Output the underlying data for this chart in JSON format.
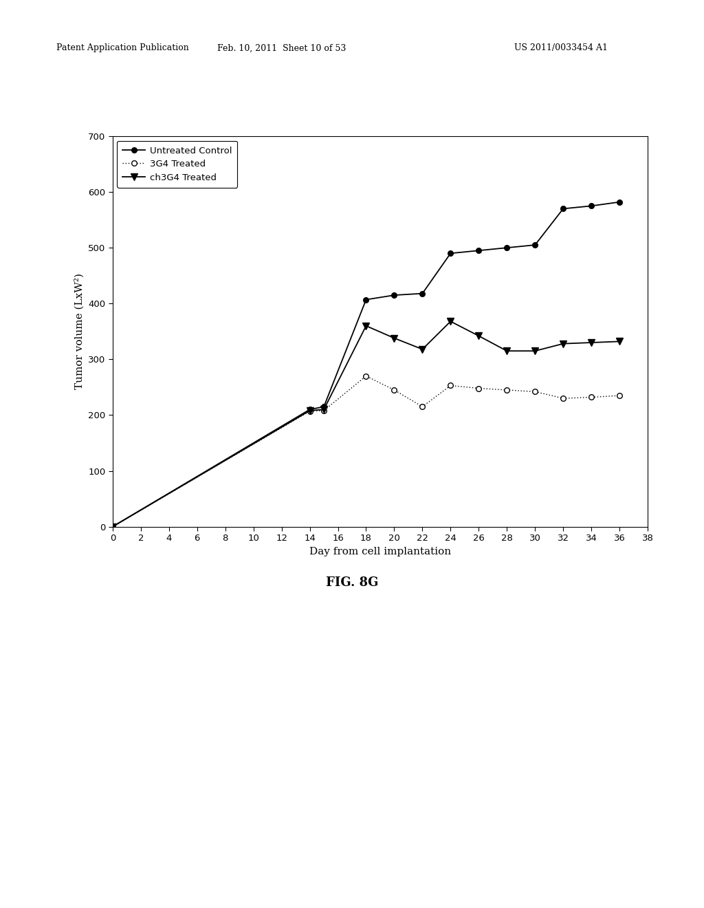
{
  "untreated_x": [
    0,
    14,
    15,
    18,
    20,
    22,
    24,
    26,
    28,
    30,
    32,
    34,
    36
  ],
  "untreated_y": [
    0,
    210,
    215,
    407,
    415,
    418,
    490,
    495,
    500,
    505,
    570,
    575,
    582
  ],
  "g3g4_x": [
    0,
    14,
    15,
    18,
    20,
    22,
    24,
    26,
    28,
    30,
    32,
    34,
    36
  ],
  "g3g4_y": [
    0,
    207,
    208,
    270,
    245,
    215,
    253,
    248,
    245,
    242,
    230,
    232,
    235
  ],
  "ch3g4_x": [
    0,
    14,
    15,
    18,
    20,
    22,
    24,
    26,
    28,
    30,
    32,
    34,
    36
  ],
  "ch3g4_y": [
    0,
    208,
    210,
    360,
    338,
    318,
    368,
    342,
    315,
    315,
    328,
    330,
    332
  ],
  "xlabel": "Day from cell implantation",
  "ylabel": "Tumor volume (LxW²)",
  "xlim": [
    0,
    38
  ],
  "ylim": [
    0,
    700
  ],
  "xticks": [
    0,
    2,
    4,
    6,
    8,
    10,
    12,
    14,
    16,
    18,
    20,
    22,
    24,
    26,
    28,
    30,
    32,
    34,
    36,
    38
  ],
  "yticks": [
    0,
    100,
    200,
    300,
    400,
    500,
    600,
    700
  ],
  "legend_labels": [
    "Untreated Control",
    "3G4 Treated",
    "ch3G4 Treated"
  ],
  "fig_caption": "FIG. 8G",
  "header_left": "Patent Application Publication",
  "header_mid": "Feb. 10, 2011  Sheet 10 of 53",
  "header_right": "US 2011/0033454 A1",
  "background_color": "#ffffff",
  "plot_bg_color": "#ffffff"
}
